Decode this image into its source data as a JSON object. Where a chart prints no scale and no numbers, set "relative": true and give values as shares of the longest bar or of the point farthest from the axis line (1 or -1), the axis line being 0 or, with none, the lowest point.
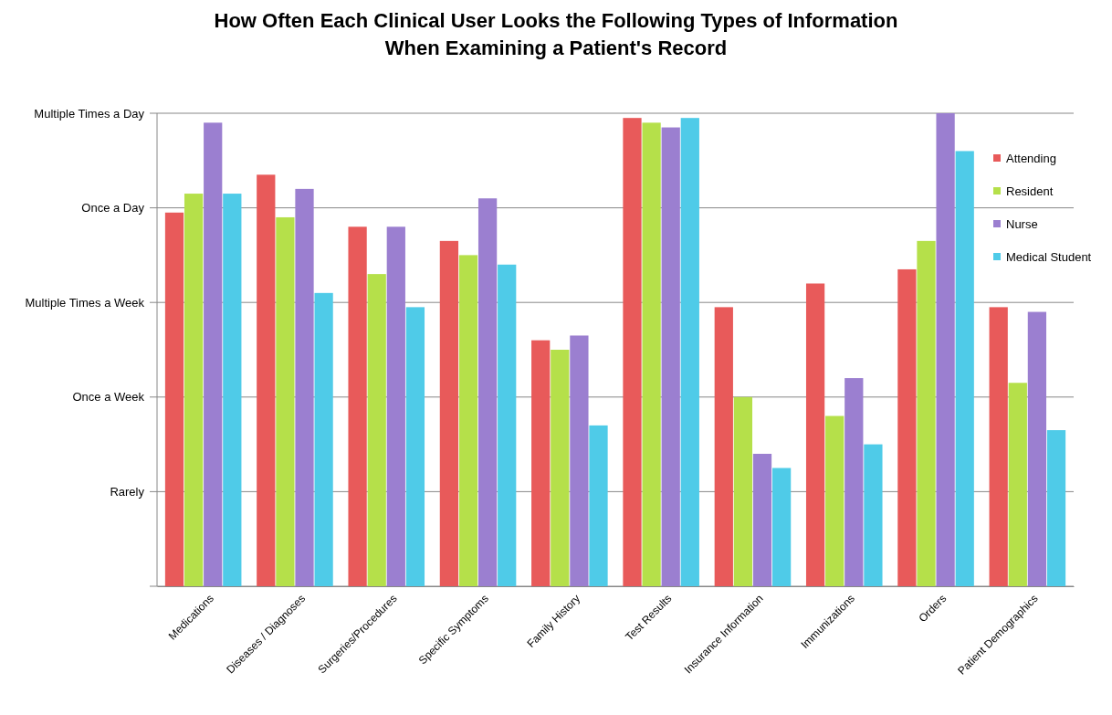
{
  "chart_data": {
    "type": "bar",
    "title": "How Often Each Clinical User Looks the Following Types of Information\nWhen Examining a Patient's Record",
    "categories": [
      "Medications",
      "Diseases / Diagnoses",
      "Surgeries/Procedures",
      "Specific Symptoms",
      "Family History",
      "Test Results",
      "Insurance Information",
      "Immunizations",
      "Orders",
      "Patient Demographics"
    ],
    "series": [
      {
        "name": "Attending",
        "color": "#e85a5a",
        "values": [
          0.79,
          0.87,
          0.76,
          0.73,
          0.52,
          0.99,
          0.59,
          0.64,
          0.67,
          0.59
        ]
      },
      {
        "name": "Resident",
        "color": "#b5e04a",
        "values": [
          0.83,
          0.78,
          0.66,
          0.7,
          0.5,
          0.98,
          0.4,
          0.36,
          0.73,
          0.43
        ]
      },
      {
        "name": "Nurse",
        "color": "#9b7fd0",
        "values": [
          0.98,
          0.84,
          0.76,
          0.82,
          0.53,
          0.97,
          0.28,
          0.44,
          1,
          0.58
        ]
      },
      {
        "name": "Medical Student",
        "color": "#4fcbe8",
        "values": [
          0.83,
          0.62,
          0.59,
          0.68,
          0.34,
          0.99,
          0.25,
          0.3,
          0.92,
          0.33
        ]
      }
    ],
    "relative": true,
    "annotations": [
      "Rarely",
      "Once a Week",
      "Multiple Times a Week",
      "Once  a Day",
      "Multiple Times a Day"
    ],
    "grid": "y",
    "legend": "top right"
  }
}
